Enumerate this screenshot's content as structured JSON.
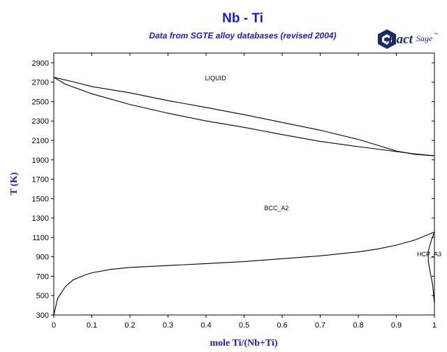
{
  "header": {
    "title": "Nb - Ti",
    "subtitle": "Data from SGTE alloy databases (revised 2004)",
    "logo_text_a": "Fact",
    "logo_text_b": "Sage",
    "logo_tm": "™"
  },
  "colors": {
    "title": "#1a1adc",
    "logo": "#1a2a6c",
    "curve": "#000000",
    "frame": "#000000"
  },
  "chart_data": {
    "type": "line",
    "title": "Nb - Ti",
    "subtitle": "Data from SGTE alloy databases (revised 2004)",
    "xlabel": "mole Ti/(Nb+Ti)",
    "ylabel": "T (K)",
    "xlim": [
      0,
      1
    ],
    "ylim": [
      300,
      3000
    ],
    "xticks": [
      "0",
      "0.1",
      "0.2",
      "0.3",
      "0.4",
      "0.5",
      "0.6",
      "0.7",
      "0.8",
      "0.9",
      "1"
    ],
    "yticks": [
      "300",
      "500",
      "700",
      "900",
      "1100",
      "1300",
      "1500",
      "1700",
      "1900",
      "2100",
      "2300",
      "2500",
      "2700",
      "2900"
    ],
    "region_labels": [
      {
        "text": "LIQUID",
        "x": 0.425,
        "y": 2720
      },
      {
        "text": "BCC_A2",
        "x": 0.585,
        "y": 1380
      },
      {
        "text": "HCP_A3",
        "x": 0.993,
        "y": 905
      }
    ],
    "series": [
      {
        "values": [
          [
            0,
            2750
          ],
          [
            0.05,
            2705
          ],
          [
            0.1,
            2655
          ],
          [
            0.2,
            2590
          ],
          [
            0.3,
            2510
          ],
          [
            0.4,
            2440
          ],
          [
            0.5,
            2365
          ],
          [
            0.6,
            2285
          ],
          [
            0.7,
            2205
          ],
          [
            0.8,
            2110
          ],
          [
            0.85,
            2050
          ],
          [
            0.9,
            1990
          ],
          [
            0.95,
            1955
          ],
          [
            1.0,
            1941
          ]
        ]
      },
      {
        "values": [
          [
            0,
            2750
          ],
          [
            0.03,
            2680
          ],
          [
            0.1,
            2580
          ],
          [
            0.2,
            2470
          ],
          [
            0.3,
            2380
          ],
          [
            0.4,
            2300
          ],
          [
            0.5,
            2235
          ],
          [
            0.6,
            2160
          ],
          [
            0.7,
            2090
          ],
          [
            0.8,
            2035
          ],
          [
            0.9,
            1985
          ],
          [
            0.95,
            1960
          ],
          [
            1.0,
            1941
          ]
        ]
      },
      {
        "values": [
          [
            0,
            300
          ],
          [
            0.01,
            470
          ],
          [
            0.03,
            590
          ],
          [
            0.05,
            660
          ],
          [
            0.08,
            710
          ],
          [
            0.1,
            735
          ],
          [
            0.15,
            770
          ],
          [
            0.2,
            790
          ],
          [
            0.3,
            810
          ],
          [
            0.4,
            830
          ],
          [
            0.5,
            850
          ],
          [
            0.6,
            880
          ],
          [
            0.7,
            910
          ],
          [
            0.8,
            950
          ],
          [
            0.85,
            980
          ],
          [
            0.9,
            1020
          ],
          [
            0.95,
            1075
          ],
          [
            1.0,
            1155
          ]
        ]
      },
      {
        "values": [
          [
            1.0,
            1155
          ],
          [
            0.993,
            1085
          ],
          [
            0.984,
            960
          ],
          [
            0.984,
            850
          ],
          [
            0.99,
            720
          ],
          [
            0.995,
            620
          ],
          [
            1.0,
            420
          ]
        ]
      }
    ]
  }
}
